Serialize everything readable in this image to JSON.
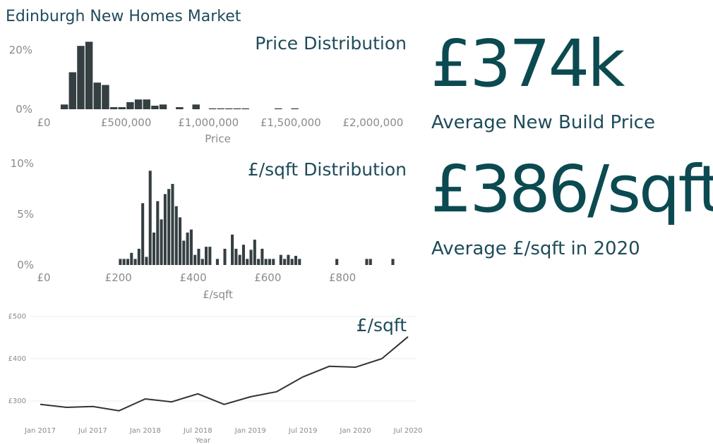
{
  "header": {
    "title": "Edinburgh New Homes Market"
  },
  "kpis": [
    {
      "value": "£374k",
      "label": "Average New Build Price"
    },
    {
      "value": "£386/sqft",
      "label": "Average £/sqft in 2020"
    }
  ],
  "chart_data": [
    {
      "type": "histogram",
      "title": "Price Distribution",
      "x_label": "Price",
      "color": "#353f42",
      "grid": false,
      "bins": [
        100000,
        150000,
        200000,
        250000,
        300000,
        350000,
        400000,
        450000,
        500000,
        550000,
        600000,
        650000,
        700000,
        750000,
        800000,
        850000,
        900000,
        950000,
        1000000,
        1050000,
        1100000,
        1150000,
        1200000,
        1250000,
        1300000,
        1350000,
        1400000,
        1450000,
        1500000,
        1550000
      ],
      "values": [
        1.6,
        12.5,
        21.4,
        22.8,
        9,
        8.2,
        0.7,
        0.7,
        2.4,
        3.3,
        3.3,
        1.2,
        1.6,
        0,
        0.7,
        0,
        1.6,
        0,
        0.3,
        0.3,
        0.3,
        0.3,
        0.3,
        0,
        0,
        0,
        0.3,
        0,
        0.3
      ],
      "xlim": [
        0,
        2200000
      ],
      "xticks": [
        {
          "value": 0,
          "label": "£0"
        },
        {
          "value": 500000,
          "label": "£500,000"
        },
        {
          "value": 1000000,
          "label": "£1,000,000"
        },
        {
          "value": 1500000,
          "label": "£1,500,000"
        },
        {
          "value": 2000000,
          "label": "£2,000,000"
        }
      ],
      "ylim": [
        0,
        25
      ],
      "yticks": [
        {
          "value": 0,
          "label": "0%"
        },
        {
          "value": 20,
          "label": "20%"
        }
      ]
    },
    {
      "type": "histogram",
      "title": "£/sqft Distribution",
      "x_label": "£/sqft",
      "color": "#353f42",
      "grid": false,
      "bins": [
        200,
        210,
        220,
        230,
        240,
        250,
        260,
        270,
        280,
        290,
        300,
        310,
        320,
        330,
        340,
        350,
        360,
        370,
        380,
        390,
        400,
        410,
        420,
        430,
        440,
        450,
        460,
        470,
        480,
        490,
        500,
        510,
        520,
        530,
        540,
        550,
        560,
        570,
        580,
        590,
        600,
        610,
        620,
        630,
        640,
        650,
        660,
        670,
        680,
        690,
        700,
        710,
        720,
        730,
        740,
        750,
        760,
        770,
        780,
        790,
        800,
        810,
        820,
        830,
        840,
        850,
        860,
        870,
        880,
        890,
        900,
        910,
        920,
        930,
        940
      ],
      "values": [
        0.6,
        0.6,
        0.6,
        1.2,
        0.6,
        1.6,
        6.1,
        0.8,
        9.3,
        3.2,
        6.3,
        4.5,
        7.0,
        7.5,
        8.0,
        5.8,
        4.7,
        2.4,
        3.2,
        3.5,
        1.0,
        1.6,
        0.6,
        1.8,
        1.8,
        0,
        0.6,
        0,
        1.6,
        0,
        3.0,
        1.6,
        1.0,
        2.0,
        0.6,
        1.5,
        2.5,
        0.6,
        1.6,
        0.6,
        0.6,
        0.6,
        0,
        1.0,
        0.6,
        1.0,
        0.6,
        0.9,
        0.6,
        0,
        0,
        0,
        0,
        0,
        0,
        0,
        0,
        0,
        0.6,
        0,
        0,
        0,
        0,
        0,
        0,
        0,
        0.6,
        0.6,
        0,
        0,
        0,
        0,
        0,
        0.6
      ],
      "xlim": [
        0,
        970
      ],
      "xticks": [
        {
          "value": 0,
          "label": "£0"
        },
        {
          "value": 200,
          "label": "£200"
        },
        {
          "value": 400,
          "label": "£400"
        },
        {
          "value": 600,
          "label": "£600"
        },
        {
          "value": 800,
          "label": "£800"
        }
      ],
      "ylim": [
        0,
        10.5
      ],
      "yticks": [
        {
          "value": 0,
          "label": "0%"
        },
        {
          "value": 5,
          "label": "5%"
        },
        {
          "value": 10,
          "label": "10%"
        }
      ]
    },
    {
      "type": "line",
      "title": "£/sqft",
      "x_label": "Year",
      "color": "#333333",
      "grid": true,
      "categories": [
        "Jan 2017",
        null,
        "Jul 2017",
        null,
        "Jan 2018",
        null,
        "Jul 2018",
        null,
        "Jan 2019",
        null,
        "Jul 2019",
        null,
        "Jan 2020",
        null,
        "Jul 2020"
      ],
      "values": [
        292,
        285,
        287,
        277,
        305,
        298,
        317,
        292,
        310,
        322,
        357,
        382,
        380,
        400,
        452
      ],
      "ylim": [
        250,
        500
      ],
      "yticks": [
        {
          "value": 300,
          "label": "£300"
        },
        {
          "value": 400,
          "label": "£400"
        },
        {
          "value": 500,
          "label": "£500"
        }
      ]
    }
  ]
}
